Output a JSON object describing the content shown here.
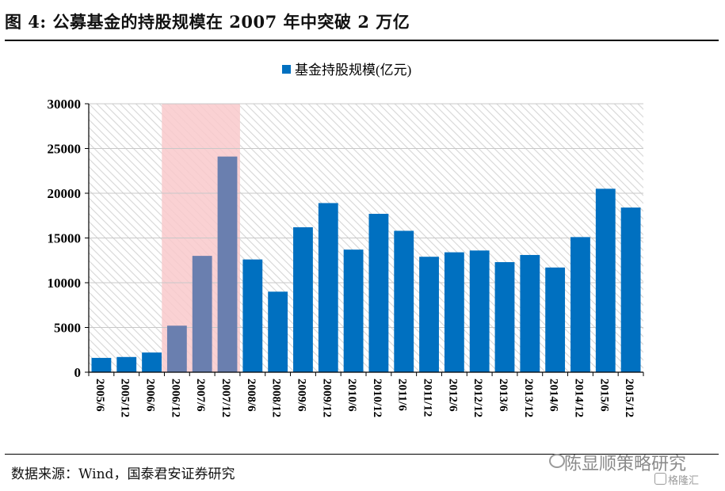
{
  "figure_title": "图 4:  公募基金的持股规模在 2007 年中突破 2 万亿",
  "source": "数据来源：Wind，国泰君安证券研究",
  "watermark": "陈显顺策略研究",
  "watermark2": "格隆汇",
  "colors": {
    "bar": "#0070C0",
    "bar_highlight": "#6A7FAF",
    "band": "#F9C9CB",
    "hatch": "#D6D6D6"
  },
  "chart_data": {
    "type": "bar",
    "legend": "基金持股规模(亿元)",
    "legend_position": "top-center",
    "categories": [
      "2005/6",
      "2005/12",
      "2006/6",
      "2006/12",
      "2007/6",
      "2007/12",
      "2008/6",
      "2008/12",
      "2009/6",
      "2009/12",
      "2010/6",
      "2010/12",
      "2011/6",
      "2011/12",
      "2012/6",
      "2012/12",
      "2013/6",
      "2013/12",
      "2014/6",
      "2014/12",
      "2015/6",
      "2015/12"
    ],
    "values": [
      1600,
      1700,
      2200,
      5200,
      13000,
      24100,
      12600,
      9000,
      16200,
      18900,
      13700,
      17700,
      15800,
      12900,
      13400,
      13600,
      12300,
      13100,
      11700,
      15100,
      20500,
      18400
    ],
    "highlight_categories": [
      "2006/12",
      "2007/6",
      "2007/12"
    ],
    "yticks": [
      0,
      5000,
      10000,
      15000,
      20000,
      25000,
      30000
    ],
    "ylim": [
      0,
      30000
    ],
    "grid": true
  }
}
